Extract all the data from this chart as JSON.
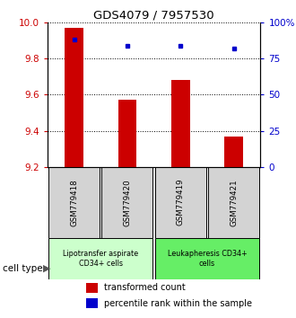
{
  "title": "GDS4079 / 7957530",
  "samples": [
    "GSM779418",
    "GSM779420",
    "GSM779419",
    "GSM779421"
  ],
  "red_values": [
    9.97,
    9.57,
    9.68,
    9.37
  ],
  "blue_values": [
    88,
    84,
    84,
    82
  ],
  "ylim_left": [
    9.2,
    10.0
  ],
  "ylim_right": [
    0,
    100
  ],
  "yticks_left": [
    9.2,
    9.4,
    9.6,
    9.8,
    10.0
  ],
  "yticks_right": [
    0,
    25,
    50,
    75,
    100
  ],
  "ytick_labels_right": [
    "0",
    "25",
    "50",
    "75",
    "100%"
  ],
  "bar_color": "#cc0000",
  "dot_color": "#0000cc",
  "bar_bottom": 9.2,
  "cell_type_groups": [
    {
      "label": "Lipotransfer aspirate\nCD34+ cells",
      "color": "#ccffcc",
      "x_start": 0,
      "x_end": 1
    },
    {
      "label": "Leukapheresis CD34+\ncells",
      "color": "#66ee66",
      "x_start": 2,
      "x_end": 3
    }
  ],
  "legend_red": "transformed count",
  "legend_blue": "percentile rank within the sample",
  "cell_type_label": "cell type",
  "bar_width": 0.35,
  "xlim": [
    -0.5,
    3.5
  ]
}
